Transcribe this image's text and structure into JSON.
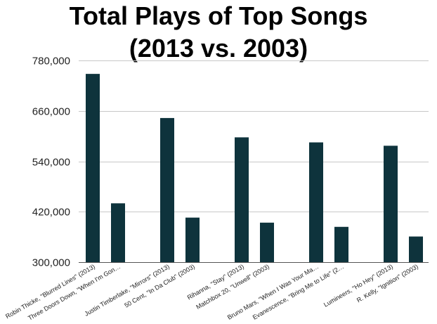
{
  "chart_data": {
    "type": "bar",
    "title": "Total Plays of Top Songs (2013 vs. 2003)",
    "title_lines": [
      "Total Plays of Top Songs",
      "(2013 vs. 2003)"
    ],
    "xlabel": "",
    "ylabel": "",
    "ylim": [
      300000,
      780000
    ],
    "yticks": [
      300000,
      420000,
      540000,
      660000,
      780000
    ],
    "ytick_labels": [
      "300,000",
      "420,000",
      "540,000",
      "660,000",
      "780,000"
    ],
    "grid": true,
    "legend": "none",
    "bar_color": "#0e333c",
    "categories": [
      "Robin Thicke, \"Blurred Lines\" (2013)",
      "Three Doors Down, \"When I'm Gon…",
      "Justin Timberlake, \"Mirrors\" (2013)",
      "50 Cent, \"In Da Club\" (2003)",
      "Rihanna, \"Stay\" (2013)",
      "Matchbox 20, \"Unwell\" (2003)",
      "Bruno Mars, \"When I Was Your Ma…",
      "Evanescence, \"Bring Me to Life\" (2…",
      "Lumineers, \"Ho Hey\" (2013)",
      "R. Kelly, \"Ignition\" (2003)"
    ],
    "values": [
      748000,
      440000,
      643000,
      406000,
      597000,
      394000,
      585000,
      384000,
      577000,
      361000
    ],
    "groups": [
      [
        0,
        1
      ],
      [
        2,
        3
      ],
      [
        4,
        5
      ],
      [
        6,
        7
      ],
      [
        8,
        9
      ]
    ]
  }
}
